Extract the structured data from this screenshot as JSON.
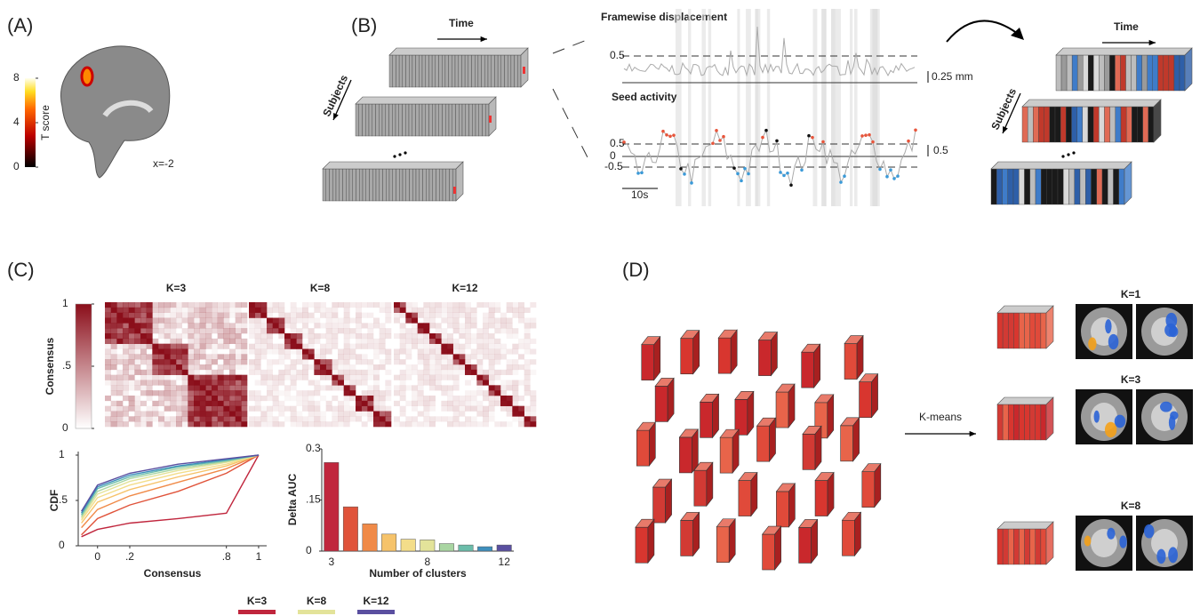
{
  "panel_a": {
    "label": "(A)",
    "colorbar": {
      "ticks": [
        8,
        4,
        0
      ],
      "label": "T score"
    },
    "slice": "x=-2"
  },
  "panel_b": {
    "label": "(B)",
    "time": "Time",
    "subjects": "Subjects",
    "fd": {
      "title": "Framewise displacement",
      "threshold": "0.5",
      "scale": "0.25 mm"
    },
    "seed": {
      "title": "Seed activity",
      "ticks": [
        "0.5",
        "0",
        "-0.5"
      ],
      "scale": "0.5",
      "time_scale": "10s"
    },
    "time_right": "Time",
    "subjects_right": "Subjects"
  },
  "panel_c": {
    "label": "(C)",
    "colorbar": {
      "label": "Consensus",
      "ticks": [
        1,
        {
          "value": 0.5,
          "label": ".5"
        },
        0
      ]
    },
    "heatmaps": [
      "K=3",
      "K=8",
      "K=12"
    ]
  },
  "panel_d": {
    "label": "(D)",
    "method": "K-means",
    "states": [
      "K=1",
      "K=3",
      "K=8"
    ]
  },
  "chart_data": [
    {
      "type": "line",
      "y_label": "CDF",
      "x_label": "Consensus",
      "x": [
        -0.1,
        0,
        0.2,
        0.5,
        0.8,
        1
      ],
      "series": [
        {
          "name": "K=3",
          "color": "#c0263d",
          "values": [
            0.1,
            0.18,
            0.25,
            0.3,
            0.36,
            1
          ]
        },
        {
          "color": "#e0533a",
          "values": [
            0.12,
            0.3,
            0.45,
            0.6,
            0.8,
            1
          ]
        },
        {
          "color": "#f08a48",
          "values": [
            0.2,
            0.4,
            0.55,
            0.7,
            0.85,
            1
          ]
        },
        {
          "color": "#f6c36a",
          "values": [
            0.25,
            0.48,
            0.62,
            0.76,
            0.88,
            1
          ]
        },
        {
          "color": "#f3dd8a",
          "values": [
            0.28,
            0.53,
            0.67,
            0.8,
            0.9,
            1
          ]
        },
        {
          "name": "K=8",
          "color": "#e3e39a",
          "values": [
            0.3,
            0.57,
            0.71,
            0.83,
            0.92,
            1
          ]
        },
        {
          "color": "#a9d5a2",
          "values": [
            0.32,
            0.6,
            0.74,
            0.85,
            0.93,
            1
          ]
        },
        {
          "color": "#6bbdaa",
          "values": [
            0.34,
            0.63,
            0.76,
            0.87,
            0.94,
            1
          ]
        },
        {
          "color": "#3e8fbd",
          "values": [
            0.36,
            0.65,
            0.78,
            0.88,
            0.95,
            1
          ]
        },
        {
          "name": "K=12",
          "color": "#5a4fa0",
          "values": [
            0.38,
            0.67,
            0.8,
            0.9,
            0.96,
            1
          ]
        }
      ],
      "xlim": [
        -0.12,
        1.05
      ],
      "ylim": [
        0,
        1
      ],
      "xticks": [
        0,
        {
          "value": 0.2,
          "label": ".2"
        },
        {
          "value": 0.8,
          "label": ".8"
        },
        1
      ],
      "yticks": [
        0,
        {
          "value": 0.5,
          "label": ".5"
        },
        1
      ]
    },
    {
      "type": "bar",
      "y_label": "Delta AUC",
      "x_label": "Number of clusters",
      "categories": [
        "3",
        null,
        null,
        null,
        null,
        "8",
        null,
        null,
        null,
        "12"
      ],
      "values": [
        0.26,
        0.13,
        0.08,
        0.05,
        0.035,
        0.033,
        0.022,
        0.018,
        0.013,
        0.018
      ],
      "colors": [
        "#c0263d",
        "#e0533a",
        "#f08a48",
        "#f6c36a",
        "#f3dd8a",
        "#e3e39a",
        "#a9d5a2",
        "#6bbdaa",
        "#3e8fbd",
        "#5a4fa0"
      ],
      "ylim": [
        0,
        0.3
      ],
      "yticks": [
        0,
        {
          "value": 0.15,
          "label": ".15"
        },
        0.3
      ]
    }
  ]
}
